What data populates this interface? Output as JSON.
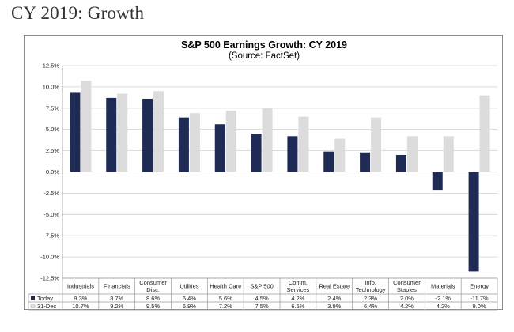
{
  "page": {
    "heading": "CY 2019: Growth"
  },
  "chart_data": {
    "type": "bar",
    "title": "S&P 500 Earnings Growth: CY 2019",
    "subtitle": "(Source: FactSet)",
    "categories": [
      [
        "Industrials"
      ],
      [
        "Financials"
      ],
      [
        "Consumer",
        "Disc."
      ],
      [
        "Utilities"
      ],
      [
        "Health Care"
      ],
      [
        "S&P 500"
      ],
      [
        "Comm.",
        "Services"
      ],
      [
        "Real Estate"
      ],
      [
        "Info.",
        "Technology"
      ],
      [
        "Consumer",
        "Staples"
      ],
      [
        "Materials"
      ],
      [
        "Energy"
      ]
    ],
    "series": [
      {
        "name": "Today",
        "color": "#1f2a55",
        "values": [
          9.3,
          8.7,
          8.6,
          6.4,
          5.6,
          4.5,
          4.2,
          2.4,
          2.3,
          2.0,
          -2.1,
          -11.7
        ],
        "labels": [
          "9.3%",
          "8.7%",
          "8.6%",
          "6.4%",
          "5.6%",
          "4.5%",
          "4.2%",
          "2.4%",
          "2.3%",
          "2.0%",
          "-2.1%",
          "-11.7%"
        ]
      },
      {
        "name": "31-Dec",
        "color": "#dcdcdc",
        "values": [
          10.7,
          9.2,
          9.5,
          6.9,
          7.2,
          7.5,
          6.5,
          3.9,
          6.4,
          4.2,
          4.2,
          9.0
        ],
        "labels": [
          "10.7%",
          "9.2%",
          "9.5%",
          "6.9%",
          "7.2%",
          "7.5%",
          "6.5%",
          "3.9%",
          "6.4%",
          "4.2%",
          "4.2%",
          "9.0%"
        ]
      }
    ],
    "ylim": [
      -12.5,
      12.5
    ],
    "yticks": [
      12.5,
      10.0,
      7.5,
      5.0,
      2.5,
      0.0,
      -2.5,
      -5.0,
      -7.5,
      -10.0,
      -12.5
    ],
    "ytick_labels": [
      "12.5%",
      "10.0%",
      "7.5%",
      "5.0%",
      "2.5%",
      "0.0%",
      "-2.5%",
      "-5.0%",
      "-7.5%",
      "-10.0%",
      "-12.5%"
    ],
    "grid": true,
    "legend": "data-table"
  }
}
